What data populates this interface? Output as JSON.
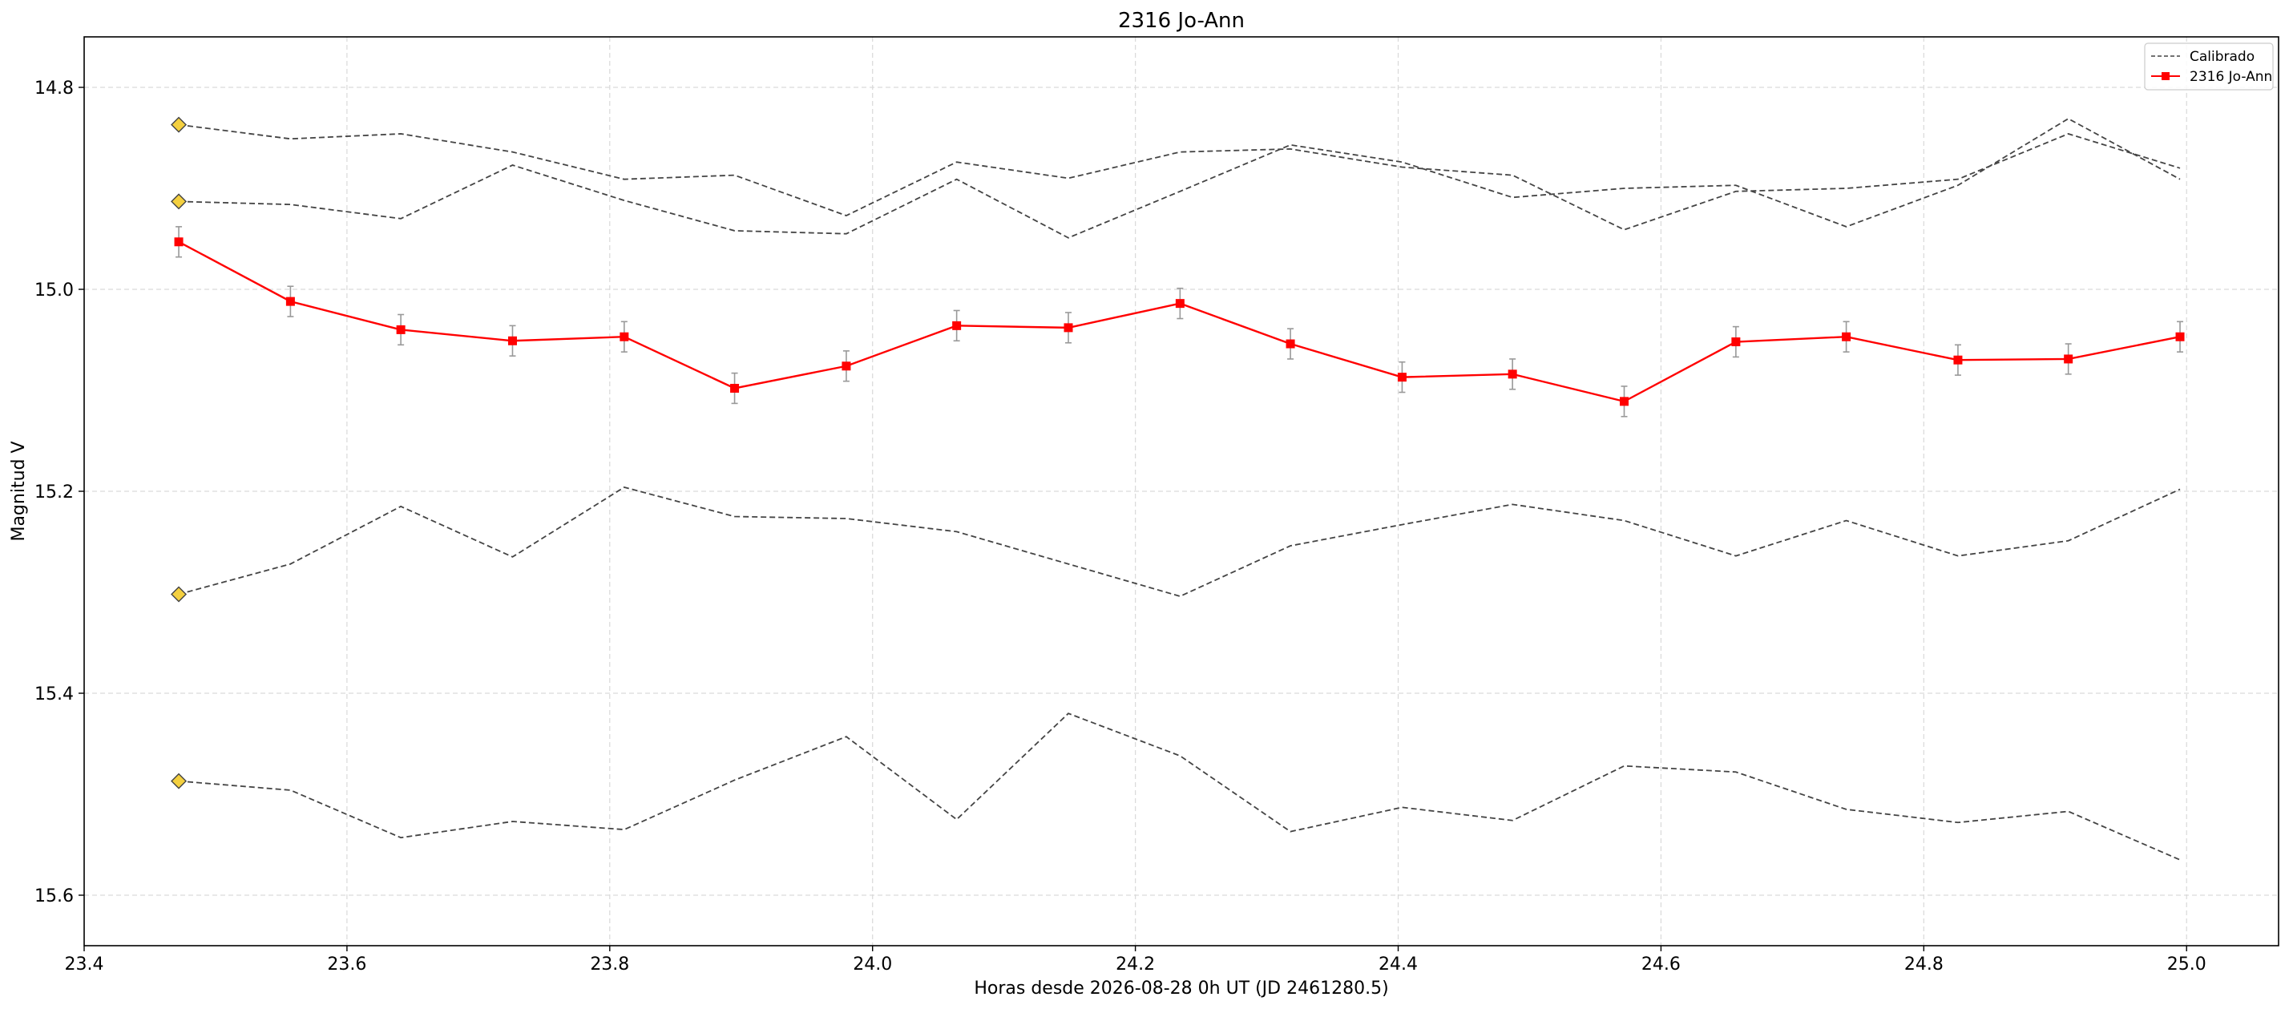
{
  "chart_data": {
    "type": "line",
    "title": "2316 Jo-Ann",
    "xlabel": "Horas desde 2026-08-28 0h UT (JD 2461280.5)",
    "ylabel": "Magnitud V",
    "xlim": [
      23.4,
      25.07
    ],
    "ylim": [
      14.75,
      15.65
    ],
    "y_inverted": true,
    "grid": true,
    "legend_position": "top-right",
    "x_ticks": [
      23.4,
      23.6,
      23.8,
      24.0,
      24.2,
      24.4,
      24.6,
      24.8,
      25.0
    ],
    "x_tick_labels": [
      "23.4",
      "23.6",
      "23.8",
      "24.0",
      "24.2",
      "24.4",
      "24.6",
      "24.8",
      "25.0"
    ],
    "y_ticks": [
      14.8,
      15.0,
      15.2,
      15.4,
      15.6
    ],
    "y_tick_labels": [
      "14.8",
      "15.0",
      "15.2",
      "15.4",
      "15.6"
    ],
    "x": [
      23.472,
      23.557,
      23.641,
      23.726,
      23.811,
      23.895,
      23.98,
      24.064,
      24.149,
      24.234,
      24.318,
      24.403,
      24.487,
      24.572,
      24.657,
      24.741,
      24.826,
      24.91,
      24.995
    ],
    "series": [
      {
        "name": "Calibrado",
        "style": "dashed",
        "color": "#444444",
        "values": [
          14.837,
          14.851,
          14.846,
          14.864,
          14.891,
          14.887,
          14.927,
          14.874,
          14.89,
          14.864,
          14.861,
          14.879,
          14.887,
          14.941,
          14.903,
          14.9,
          14.891,
          14.846,
          14.88
        ]
      },
      {
        "name": "",
        "style": "dashed",
        "color": "#444444",
        "values": [
          14.913,
          14.916,
          14.93,
          14.877,
          14.912,
          14.942,
          14.945,
          14.891,
          14.949,
          14.903,
          14.857,
          14.874,
          14.909,
          14.9,
          14.897,
          14.938,
          14.897,
          14.831,
          14.891
        ]
      },
      {
        "name": "",
        "style": "dashed",
        "color": "#444444",
        "values": [
          15.302,
          15.272,
          15.215,
          15.265,
          15.196,
          15.225,
          15.227,
          15.24,
          15.272,
          15.304,
          15.254,
          15.233,
          15.213,
          15.229,
          15.264,
          15.229,
          15.264,
          15.249,
          15.198
        ]
      },
      {
        "name": "",
        "style": "dashed",
        "color": "#444444",
        "values": [
          15.487,
          15.496,
          15.543,
          15.527,
          15.535,
          15.486,
          15.443,
          15.525,
          15.42,
          15.462,
          15.537,
          15.513,
          15.526,
          15.472,
          15.478,
          15.515,
          15.528,
          15.517,
          15.565
        ]
      },
      {
        "name": "2316 Jo-Ann",
        "style": "solid",
        "color": "#ff0000",
        "marker": "square",
        "values": [
          14.953,
          15.012,
          15.04,
          15.051,
          15.047,
          15.098,
          15.076,
          15.036,
          15.038,
          15.014,
          15.054,
          15.087,
          15.084,
          15.111,
          15.052,
          15.047,
          15.07,
          15.069,
          15.047
        ],
        "errors": [
          0.015,
          0.015,
          0.015,
          0.015,
          0.015,
          0.015,
          0.015,
          0.015,
          0.015,
          0.015,
          0.015,
          0.015,
          0.015,
          0.015,
          0.015,
          0.015,
          0.015,
          0.015,
          0.015
        ]
      }
    ],
    "reference_markers": {
      "shape": "diamond",
      "color": "#f4d03f",
      "x": 23.472,
      "values": [
        14.837,
        14.913,
        15.302,
        15.487
      ]
    }
  }
}
